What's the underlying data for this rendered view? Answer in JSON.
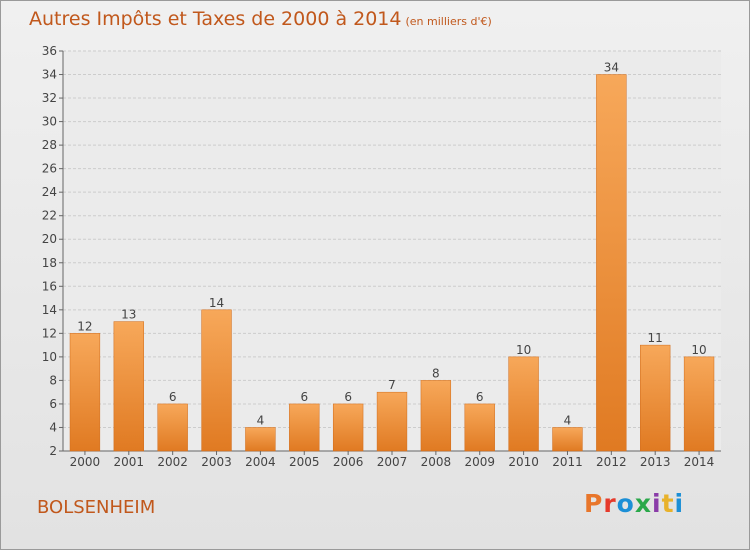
{
  "header": {
    "title": "Autres Impôts et Taxes de 2000 à 2014",
    "subtitle": "(en milliers d'€)"
  },
  "footer": {
    "location": "BOLSENHEIM",
    "brand": "Proxiti",
    "brand_colors": [
      "#e8762b",
      "#e63a2b",
      "#1c8fd6",
      "#2aa84a",
      "#8a3ca8",
      "#e8b22b",
      "#1c8fd6"
    ]
  },
  "chart_data": {
    "type": "bar",
    "categories": [
      "2000",
      "2001",
      "2002",
      "2003",
      "2004",
      "2005",
      "2006",
      "2007",
      "2008",
      "2009",
      "2010",
      "2011",
      "2012",
      "2013",
      "2014"
    ],
    "values": [
      12,
      13,
      6,
      14,
      4,
      6,
      6,
      7,
      8,
      6,
      10,
      4,
      34,
      11,
      10
    ],
    "data_labels": [
      "12",
      "13",
      "6",
      "14",
      "4",
      "6",
      "6",
      "7",
      "8",
      "6",
      "10",
      "4",
      "34",
      "11",
      "10"
    ],
    "yticks": [
      "2",
      "4",
      "6",
      "8",
      "10",
      "12",
      "14",
      "16",
      "18",
      "20",
      "22",
      "24",
      "26",
      "28",
      "30",
      "32",
      "34",
      "36"
    ],
    "ylim": [
      2,
      36
    ],
    "grid": true,
    "bar_color_top": "#f7a85a",
    "bar_color_bottom": "#e07a22",
    "grid_color": "#cccccc"
  }
}
